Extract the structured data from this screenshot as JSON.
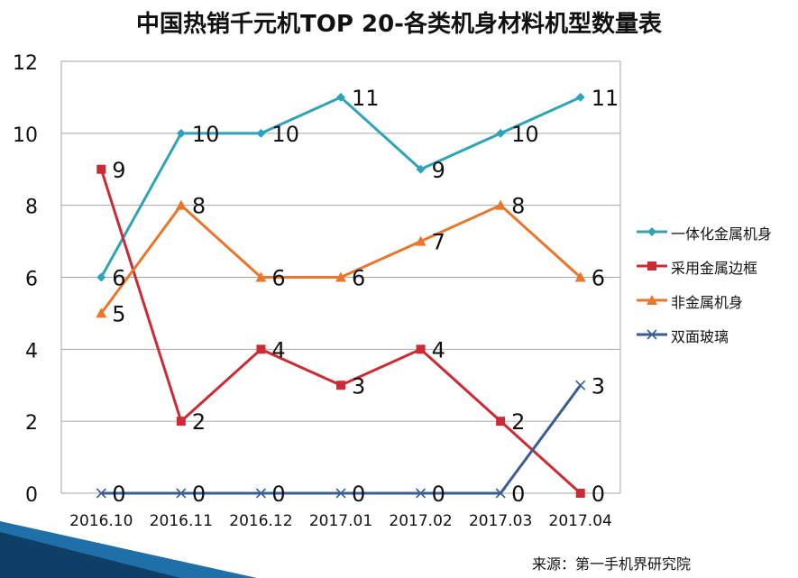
{
  "chart_data": {
    "type": "line",
    "title": "中国热销千元机TOP 20-各类机身材料机型数量表",
    "categories": [
      "2016.10",
      "2016.11",
      "2016.12",
      "2017.01",
      "2017.02",
      "2017.03",
      "2017.04"
    ],
    "ylim": [
      0,
      12
    ],
    "yticks": [
      0,
      2,
      4,
      6,
      8,
      10,
      12
    ],
    "grid": true,
    "legend_position": "right",
    "series": [
      {
        "name": "一体化金属机身",
        "values": [
          6,
          10,
          10,
          11,
          9,
          10,
          11
        ],
        "color": "#2FA3B8",
        "marker": "diamond"
      },
      {
        "name": "采用金属边框",
        "values": [
          9,
          2,
          4,
          3,
          4,
          2,
          0
        ],
        "color": "#CC2B35",
        "marker": "square"
      },
      {
        "name": "非金属机身",
        "values": [
          5,
          8,
          6,
          6,
          7,
          8,
          6
        ],
        "color": "#E8762D",
        "marker": "triangle"
      },
      {
        "name": "双面玻璃",
        "values": [
          0,
          0,
          0,
          0,
          0,
          0,
          3
        ],
        "color": "#3A5E8F",
        "marker": "x"
      }
    ]
  },
  "source": "来源：第一手机界研究院"
}
